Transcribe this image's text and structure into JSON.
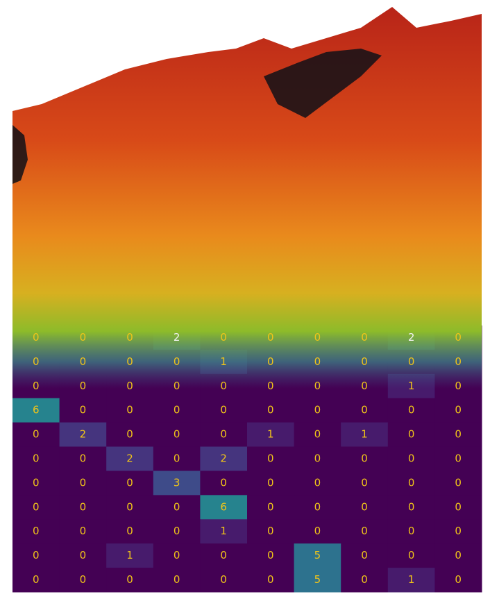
{
  "chart_data": {
    "type": "heatmap",
    "colormap": "viridis",
    "values": [
      [
        0,
        0,
        0,
        2,
        0,
        0,
        0,
        0,
        2,
        0
      ],
      [
        0,
        0,
        0,
        0,
        1,
        0,
        0,
        0,
        0,
        0
      ],
      [
        0,
        0,
        0,
        0,
        0,
        0,
        0,
        0,
        1,
        0
      ],
      [
        6,
        0,
        0,
        0,
        0,
        0,
        0,
        0,
        0,
        0
      ],
      [
        0,
        2,
        0,
        0,
        0,
        1,
        0,
        1,
        0,
        0
      ],
      [
        0,
        0,
        2,
        0,
        2,
        0,
        0,
        0,
        0,
        0
      ],
      [
        0,
        0,
        0,
        3,
        0,
        0,
        0,
        0,
        0,
        0
      ],
      [
        0,
        0,
        0,
        0,
        6,
        0,
        0,
        0,
        0,
        0
      ],
      [
        0,
        0,
        0,
        0,
        1,
        0,
        0,
        0,
        0,
        0
      ],
      [
        0,
        0,
        1,
        0,
        0,
        0,
        5,
        0,
        0,
        0
      ],
      [
        0,
        0,
        0,
        0,
        0,
        0,
        5,
        0,
        1,
        0
      ]
    ]
  }
}
